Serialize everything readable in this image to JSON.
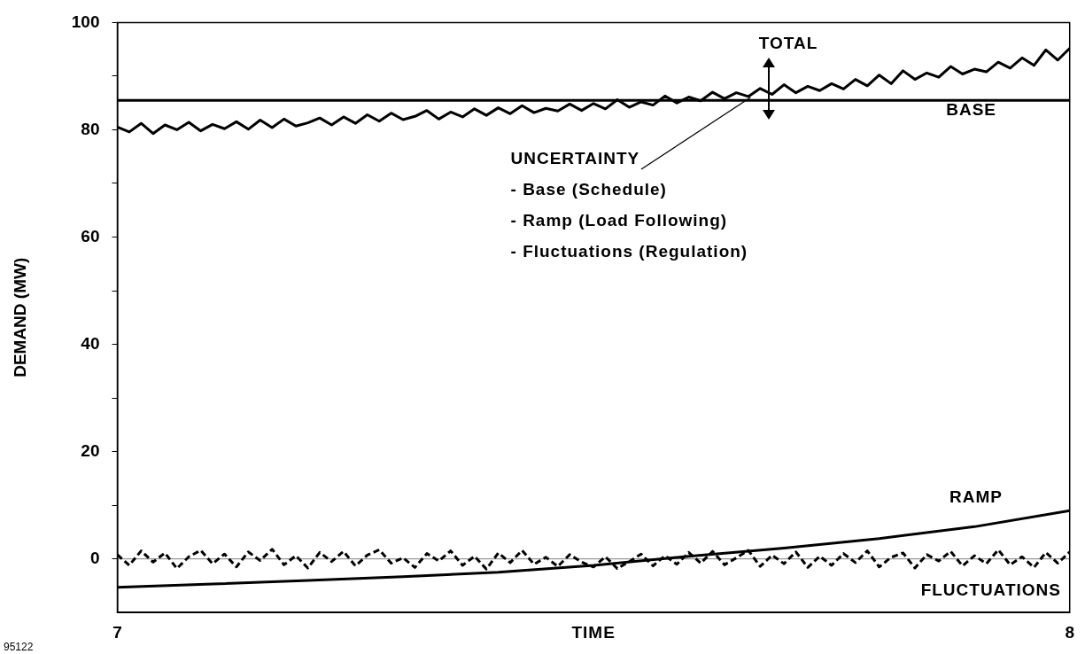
{
  "chart_data": {
    "type": "line",
    "xlabel": "TIME",
    "ylabel": "DEMAND (MW)",
    "x": [
      7,
      7.0125,
      7.025,
      7.0375,
      7.05,
      7.0625,
      7.075,
      7.0875,
      7.1,
      7.1125,
      7.125,
      7.1375,
      7.15,
      7.1625,
      7.175,
      7.1875,
      7.2,
      7.2125,
      7.225,
      7.2375,
      7.25,
      7.2625,
      7.275,
      7.2875,
      7.3,
      7.3125,
      7.325,
      7.3375,
      7.35,
      7.3625,
      7.375,
      7.3875,
      7.4,
      7.4125,
      7.425,
      7.4375,
      7.45,
      7.4625,
      7.475,
      7.4875,
      7.5,
      7.5125,
      7.525,
      7.5375,
      7.55,
      7.5625,
      7.575,
      7.5875,
      7.6,
      7.6125,
      7.625,
      7.6375,
      7.65,
      7.6625,
      7.675,
      7.6875,
      7.7,
      7.7125,
      7.725,
      7.7375,
      7.75,
      7.7625,
      7.775,
      7.7875,
      7.8,
      7.8125,
      7.825,
      7.8375,
      7.85,
      7.8625,
      7.875,
      7.8875,
      7.9,
      7.9125,
      7.925,
      7.9375,
      7.95,
      7.9625,
      7.975,
      7.9875,
      8
    ],
    "series": [
      {
        "name": "TOTAL",
        "color": "#000000",
        "values": [
          80.5,
          79.6,
          81.2,
          79.3,
          80.9,
          80.0,
          81.4,
          79.8,
          81.0,
          80.2,
          81.5,
          80.1,
          81.8,
          80.4,
          82.0,
          80.7,
          81.3,
          82.2,
          80.9,
          82.4,
          81.2,
          82.8,
          81.6,
          83.1,
          81.9,
          82.5,
          83.6,
          82.0,
          83.3,
          82.4,
          83.9,
          82.7,
          84.1,
          83.0,
          84.5,
          83.2,
          84.0,
          83.5,
          84.8,
          83.6,
          84.9,
          83.9,
          85.6,
          84.2,
          85.2,
          84.6,
          86.3,
          85.0,
          86.1,
          85.4,
          87.0,
          85.8,
          86.9,
          86.2,
          87.7,
          86.6,
          88.4,
          86.9,
          88.1,
          87.3,
          88.6,
          87.6,
          89.4,
          88.2,
          90.2,
          88.6,
          91.0,
          89.4,
          90.6,
          89.8,
          91.8,
          90.4,
          91.3,
          90.8,
          92.6,
          91.5,
          93.4,
          92.0,
          94.9,
          93.0,
          95.2
        ]
      },
      {
        "name": "BASE",
        "color": "#000000",
        "x": [
          7,
          8
        ],
        "values": [
          85.5,
          85.5
        ]
      },
      {
        "name": "RAMP",
        "color": "#000000",
        "x": [
          7,
          7.1,
          7.2,
          7.3,
          7.4,
          7.5,
          7.6,
          7.7,
          7.8,
          7.9,
          8
        ],
        "values": [
          -5.3,
          -4.7,
          -4.0,
          -3.3,
          -2.5,
          -1.2,
          0.5,
          2.0,
          3.8,
          6.0,
          9.0
        ]
      },
      {
        "name": "FLUCTUATIONS",
        "color": "#000000",
        "line_style": "dashed",
        "values": [
          0.8,
          -1.2,
          1.5,
          -0.6,
          1.1,
          -1.8,
          0.4,
          1.6,
          -0.9,
          0.9,
          -1.5,
          1.3,
          -0.3,
          1.8,
          -1.1,
          0.6,
          -1.7,
          1.2,
          -0.5,
          1.4,
          -1.3,
          0.7,
          1.7,
          -0.8,
          0.2,
          -1.6,
          1.0,
          -0.4,
          1.5,
          -1.2,
          0.5,
          -1.9,
          1.1,
          -0.7,
          1.6,
          -1.0,
          0.3,
          -1.4,
          0.8,
          -0.6,
          -1.5,
          0.4,
          -1.8,
          -0.5,
          0.9,
          -1.3,
          0.6,
          -1.0,
          1.2,
          -0.8,
          1.4,
          -1.1,
          0.2,
          1.6,
          -1.4,
          0.7,
          -0.9,
          1.3,
          -1.6,
          0.5,
          -1.2,
          1.0,
          -0.7,
          1.5,
          -1.5,
          0.3,
          1.1,
          -1.7,
          0.8,
          -0.4,
          1.4,
          -1.3,
          0.6,
          -0.9,
          1.7,
          -1.1,
          0.4,
          -1.6,
          1.2,
          -0.8,
          1.3
        ]
      }
    ],
    "xlim": [
      7,
      8
    ],
    "xticks": [
      7,
      8
    ],
    "ylim": [
      -10,
      100
    ],
    "yticks": [
      0,
      {
        "value": 10,
        "label": null
      },
      20,
      {
        "value": 30,
        "label": null
      },
      40,
      {
        "value": 50,
        "label": null
      },
      60,
      {
        "value": 70,
        "label": null
      },
      80,
      {
        "value": 90,
        "label": null
      },
      100
    ],
    "ref_lines": [
      {
        "axis": "y",
        "value": 0,
        "color": "#808080"
      }
    ],
    "grid": false,
    "legend": false,
    "annotations": [
      {
        "text": "UNCERTAINTY",
        "x": 7.665,
        "y": 86
      },
      "- Base (Schedule)",
      "- Ramp (Load Following)",
      "- Fluctuations (Regulation)",
      "95122"
    ]
  }
}
